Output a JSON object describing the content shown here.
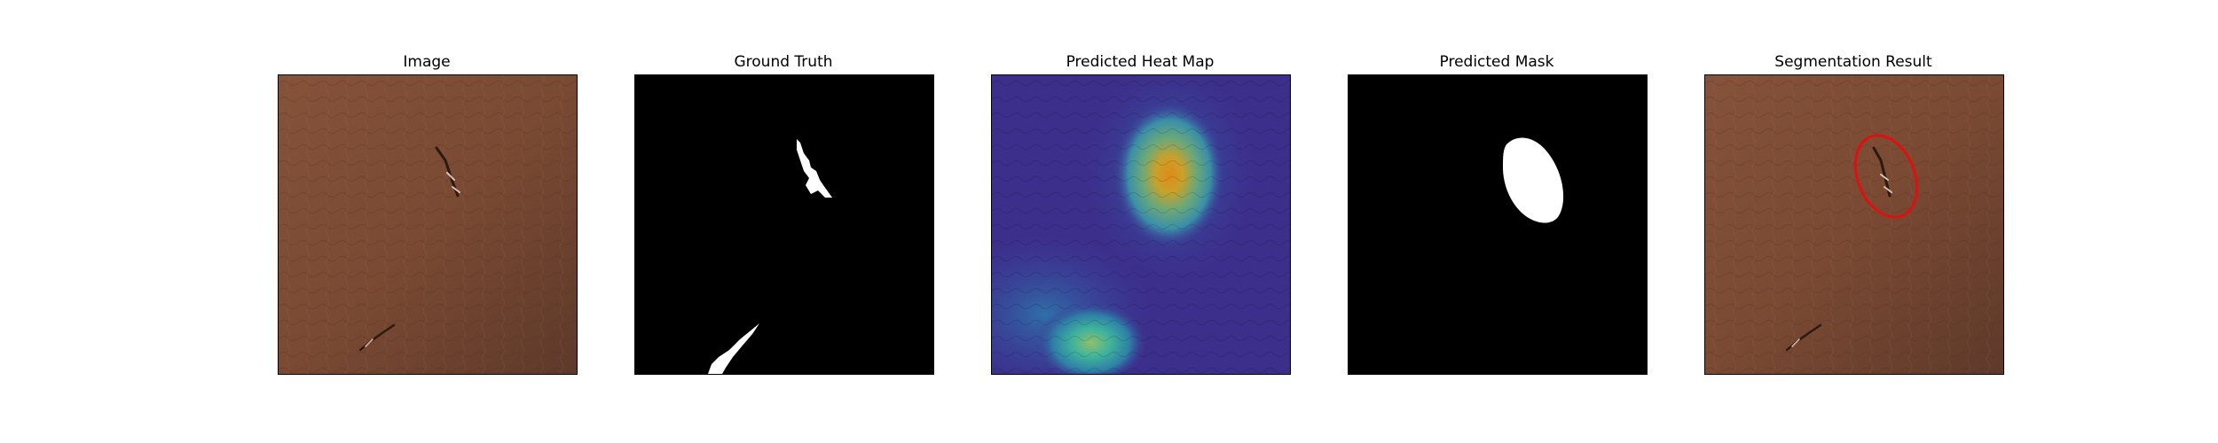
{
  "figure": {
    "panels": [
      {
        "title": "Image"
      },
      {
        "title": "Ground Truth"
      },
      {
        "title": "Predicted Heat Map"
      },
      {
        "title": "Predicted Mask"
      },
      {
        "title": "Segmentation Result"
      }
    ]
  },
  "colors": {
    "leather_base": "#7a4a33",
    "leather_light": "#8f5a3f",
    "leather_dark": "#5b3626",
    "mask_background": "#000000",
    "mask_foreground": "#ffffff",
    "heatmap_low": "#3b2f8f",
    "heatmap_mid": "#2aa39a",
    "heatmap_high": "#d98a1e",
    "contour": "#e01010"
  }
}
